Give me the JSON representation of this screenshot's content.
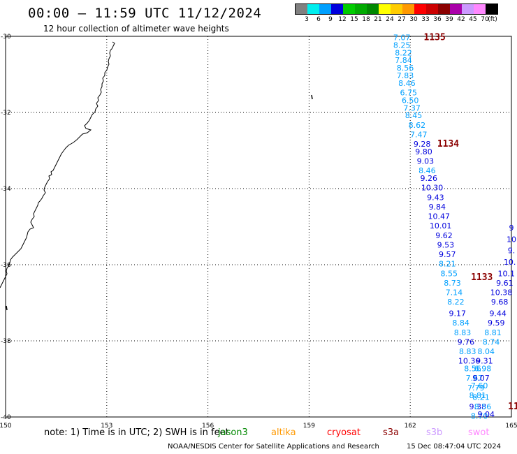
{
  "header": {
    "title": "00:00 – 11:59 UTC 11/12/2024",
    "subtitle": "12 hour collection of altimeter wave heights"
  },
  "legend": {
    "labels": [
      "3",
      "6",
      "9",
      "12",
      "15",
      "18",
      "21",
      "24",
      "27",
      "30",
      "33",
      "36",
      "39",
      "42",
      "45",
      "70",
      "(ft)"
    ],
    "colors": [
      "#808080",
      "#00eeee",
      "#00a0ff",
      "#0000dd",
      "#00cc00",
      "#00aa00",
      "#008800",
      "#ffff00",
      "#ffcc00",
      "#ff9900",
      "#ff0000",
      "#cc0000",
      "#8b0000",
      "#aa00aa",
      "#cc99ff",
      "#ff88ff",
      "#000000"
    ]
  },
  "footer": {
    "note": "note:  1) Time is in UTC;  2) SWH is in feet",
    "satellites": [
      {
        "name": "jason3",
        "color": "#008800"
      },
      {
        "name": "altika",
        "color": "#ff9900"
      },
      {
        "name": "cryosat",
        "color": "#ff0000"
      },
      {
        "name": "s3a",
        "color": "#8b0000"
      },
      {
        "name": "s3b",
        "color": "#cc99ff"
      },
      {
        "name": "swot",
        "color": "#ff88ff"
      }
    ],
    "credit": "NOAA/NESDIS Center for Satellite Applications and Research",
    "timestamp": "15 Dec 08:47:04 UTC 2024"
  },
  "chart_data": {
    "type": "scatter",
    "xlim": [
      150,
      165
    ],
    "ylim": [
      -40,
      -30
    ],
    "xticks": [
      "150",
      "153",
      "156",
      "159",
      "162",
      "165"
    ],
    "yticks": [
      "-30",
      "-32",
      "-34",
      "-36",
      "-38",
      "-40"
    ],
    "grid": true,
    "time_labels": [
      {
        "text": "1135",
        "lon": 162.4,
        "lat": -30.1,
        "color": "#8b0000"
      },
      {
        "text": "1134",
        "lon": 162.8,
        "lat": -32.9,
        "color": "#8b0000"
      },
      {
        "text": "1133",
        "lon": 163.8,
        "lat": -36.4,
        "color": "#8b0000"
      },
      {
        "text": "11",
        "lon": 164.9,
        "lat": -39.8,
        "color": "#8b0000"
      }
    ],
    "tracks": [
      {
        "name": "main",
        "points": [
          {
            "lon": 161.75,
            "lat": -30.1,
            "v": "7.07"
          },
          {
            "lon": 161.75,
            "lat": -30.3,
            "v": "8.25"
          },
          {
            "lon": 161.8,
            "lat": -30.5,
            "v": "8.22"
          },
          {
            "lon": 161.8,
            "lat": -30.7,
            "v": "7.84"
          },
          {
            "lon": 161.85,
            "lat": -30.9,
            "v": "8.56"
          },
          {
            "lon": 161.85,
            "lat": -31.1,
            "v": "7.83"
          },
          {
            "lon": 161.9,
            "lat": -31.3,
            "v": "8.46"
          },
          {
            "lon": 161.95,
            "lat": -31.55,
            "v": "6.75"
          },
          {
            "lon": 162.0,
            "lat": -31.75,
            "v": "6.50"
          },
          {
            "lon": 162.05,
            "lat": -31.95,
            "v": "7.37"
          },
          {
            "lon": 162.1,
            "lat": -32.15,
            "v": "8.45"
          },
          {
            "lon": 162.2,
            "lat": -32.4,
            "v": "8.62"
          },
          {
            "lon": 162.25,
            "lat": -32.65,
            "v": "7.47"
          },
          {
            "lon": 162.35,
            "lat": -32.9,
            "v": "9.28"
          },
          {
            "lon": 162.4,
            "lat": -33.1,
            "v": "9.80"
          },
          {
            "lon": 162.45,
            "lat": -33.35,
            "v": "9.03"
          },
          {
            "lon": 162.5,
            "lat": -33.6,
            "v": "8.46"
          },
          {
            "lon": 162.55,
            "lat": -33.8,
            "v": "9.26"
          },
          {
            "lon": 162.65,
            "lat": -34.05,
            "v": "10.30"
          },
          {
            "lon": 162.75,
            "lat": -34.3,
            "v": "9.43"
          },
          {
            "lon": 162.8,
            "lat": -34.55,
            "v": "9.84"
          },
          {
            "lon": 162.85,
            "lat": -34.8,
            "v": "10.47"
          },
          {
            "lon": 162.9,
            "lat": -35.05,
            "v": "10.01"
          },
          {
            "lon": 163.0,
            "lat": -35.3,
            "v": "9.62"
          },
          {
            "lon": 163.05,
            "lat": -35.55,
            "v": "9.53"
          },
          {
            "lon": 163.1,
            "lat": -35.8,
            "v": "9.57"
          },
          {
            "lon": 163.1,
            "lat": -36.05,
            "v": "8.21"
          },
          {
            "lon": 163.15,
            "lat": -36.3,
            "v": "8.55"
          },
          {
            "lon": 163.25,
            "lat": -36.55,
            "v": "8.73"
          },
          {
            "lon": 163.3,
            "lat": -36.8,
            "v": "7.14"
          },
          {
            "lon": 163.35,
            "lat": -37.05,
            "v": "8.22"
          },
          {
            "lon": 163.4,
            "lat": -37.35,
            "v": "9.17"
          },
          {
            "lon": 163.5,
            "lat": -37.6,
            "v": "8.84"
          },
          {
            "lon": 163.55,
            "lat": -37.85,
            "v": "8.83"
          },
          {
            "lon": 163.65,
            "lat": -38.1,
            "v": "9.76"
          },
          {
            "lon": 163.7,
            "lat": -38.35,
            "v": "8.83"
          },
          {
            "lon": 163.75,
            "lat": -38.6,
            "v": "10.36"
          },
          {
            "lon": 163.85,
            "lat": -38.8,
            "v": "8.56"
          },
          {
            "lon": 163.9,
            "lat": -39.05,
            "v": "7.67"
          },
          {
            "lon": 163.95,
            "lat": -39.3,
            "v": "7.79"
          },
          {
            "lon": 164.0,
            "lat": -39.5,
            "v": "8.81"
          },
          {
            "lon": 164.0,
            "lat": -39.8,
            "v": "9.38"
          },
          {
            "lon": 164.05,
            "lat": -40.05,
            "v": "8.70"
          }
        ]
      },
      {
        "name": "secondary",
        "points": [
          {
            "lon": 165.0,
            "lat": -35.1,
            "v": "9"
          },
          {
            "lon": 165.0,
            "lat": -35.4,
            "v": "10"
          },
          {
            "lon": 165.0,
            "lat": -35.7,
            "v": "9."
          },
          {
            "lon": 164.95,
            "lat": -36.0,
            "v": "10."
          },
          {
            "lon": 164.85,
            "lat": -36.3,
            "v": "10.1"
          },
          {
            "lon": 164.8,
            "lat": -36.55,
            "v": "9.61"
          },
          {
            "lon": 164.7,
            "lat": -36.8,
            "v": "10.38"
          },
          {
            "lon": 164.65,
            "lat": -37.05,
            "v": "9.68"
          },
          {
            "lon": 164.6,
            "lat": -37.35,
            "v": "9.44"
          },
          {
            "lon": 164.55,
            "lat": -37.6,
            "v": "9.59"
          },
          {
            "lon": 164.45,
            "lat": -37.85,
            "v": "8.81"
          },
          {
            "lon": 164.4,
            "lat": -38.1,
            "v": "8.74"
          },
          {
            "lon": 164.25,
            "lat": -38.35,
            "v": "8.04"
          },
          {
            "lon": 164.2,
            "lat": -38.6,
            "v": "9.31"
          },
          {
            "lon": 164.15,
            "lat": -38.8,
            "v": "6.98"
          },
          {
            "lon": 164.1,
            "lat": -39.05,
            "v": "9.07"
          },
          {
            "lon": 164.05,
            "lat": -39.25,
            "v": "7.60"
          },
          {
            "lon": 164.1,
            "lat": -39.55,
            "v": "8.21"
          },
          {
            "lon": 164.15,
            "lat": -39.8,
            "v": "8.56"
          },
          {
            "lon": 164.25,
            "lat": -40.0,
            "v": "9.04"
          }
        ]
      }
    ]
  }
}
